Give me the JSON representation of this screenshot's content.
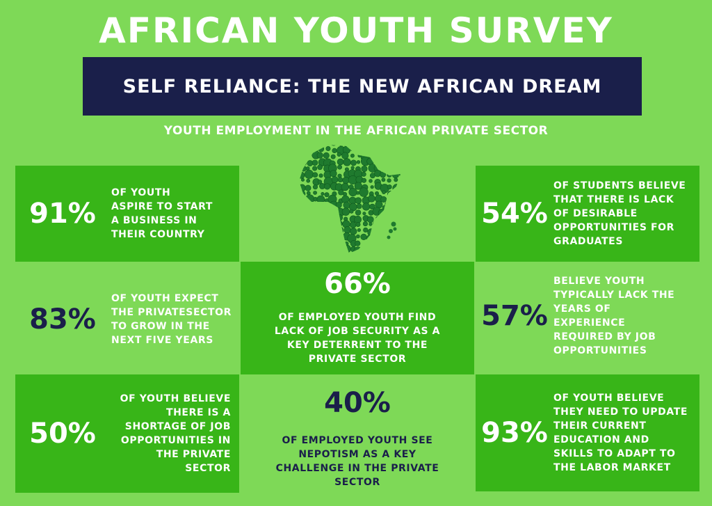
{
  "title": "AFRICAN YOUTH SURVEY",
  "banner": "SELF RELIANCE: THE NEW AFRICAN DREAM",
  "subtitle": "YOUTH EMPLOYMENT IN THE AFRICAN PRIVATE SECTOR",
  "map_icon": "africa-dotted-map-icon",
  "colors": {
    "background": "#7ed957",
    "dark_green": "#38b518",
    "navy": "#1a1f4a",
    "map_green": "#1f7a2e"
  },
  "stats": {
    "s91": {
      "pct": "91%",
      "text": "OF YOUTH ASPIRE TO START A BUSINESS IN THEIR COUNTRY"
    },
    "s54": {
      "pct": "54%",
      "text": "OF STUDENTS BELIEVE THAT THERE IS LACK OF DESIRABLE OPPORTUNITIES FOR GRADUATES"
    },
    "s83": {
      "pct": "83%",
      "text": "OF YOUTH EXPECT THE PRIVATESECTOR TO GROW IN THE NEXT FIVE YEARS"
    },
    "s66": {
      "pct": "66%",
      "text": "OF EMPLOYED YOUTH FIND LACK OF JOB SECURITY AS A KEY DETERRENT TO THE PRIVATE SECTOR"
    },
    "s57": {
      "pct": "57%",
      "text": "BELIEVE YOUTH TYPICALLY LACK THE YEARS OF EXPERIENCE REQUIRED BY JOB OPPORTUNITIES"
    },
    "s50": {
      "pct": "50%",
      "text": "OF YOUTH BELIEVE THERE IS A SHORTAGE OF JOB OPPORTUNITIES IN THE PRIVATE SECTOR"
    },
    "s40": {
      "pct": "40%",
      "text": "OF EMPLOYED YOUTH SEE NEPOTISM AS A KEY CHALLENGE IN THE PRIVATE SECTOR"
    },
    "s93": {
      "pct": "93%",
      "text": "OF YOUTH BELIEVE THEY NEED TO UPDATE THEIR CURRENT EDUCATION AND SKILLS TO ADAPT TO THE LABOR MARKET"
    }
  }
}
